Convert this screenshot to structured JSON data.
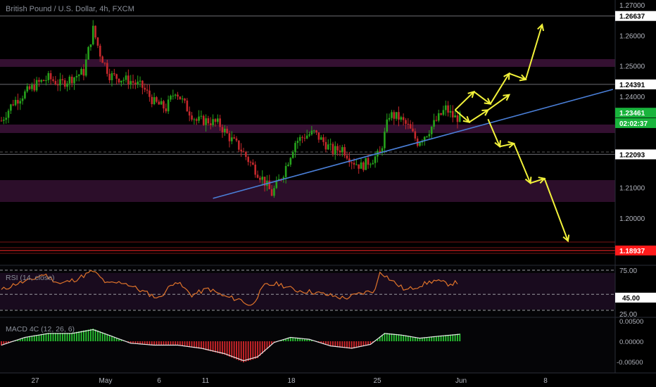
{
  "symbol_title": "British Pound / U.S. Dollar, 4h, FXCM",
  "colors": {
    "background": "#000000",
    "bull": "#26a31c",
    "bear": "#c4282c",
    "trendline": "#4a7fd8",
    "forecast": "#f2f23a",
    "zone": "#5a1a4a",
    "rsi": "#e0742a",
    "macd_line": "#e6e6e6",
    "macd_pos": "#28c832",
    "macd_neg": "#d6262b",
    "last_price_tag": "#19b43c",
    "support_tag": "#ff1a1a",
    "white_tag": "#ffffff"
  },
  "price_axis": {
    "ticks": [
      "1.27000",
      "1.26000",
      "1.25000",
      "1.24000",
      "1.21000",
      "1.20000"
    ],
    "tags": [
      {
        "label": "1.26637",
        "value": 1.26637,
        "style": "white"
      },
      {
        "label": "1.24391",
        "value": 1.24391,
        "style": "white"
      },
      {
        "label": "1.23461",
        "value": 1.23461,
        "style": "green"
      },
      {
        "label": "02:02:37",
        "value": 1.2312,
        "style": "green"
      },
      {
        "label": "1.22093",
        "value": 1.22093,
        "style": "white"
      },
      {
        "label": "1.18937",
        "value": 1.18937,
        "style": "red"
      }
    ]
  },
  "time_axis": {
    "labels": [
      "27",
      "May",
      "6",
      "11",
      "18",
      "25",
      "Jun",
      "8"
    ]
  },
  "rsi_panel": {
    "title": "RSI (14, close)",
    "ticks": [
      "75.00",
      "45.00",
      "25.00"
    ]
  },
  "macd_panel": {
    "title": "MACD 4C (12, 26, 6)",
    "ticks": [
      "0.00500",
      "0.00000",
      "-0.00500"
    ]
  },
  "chart_data": {
    "type": "candlestick",
    "title": "British Pound / U.S. Dollar, 4h, FXCM",
    "x_labels": [
      "27",
      "May",
      "6",
      "11",
      "18",
      "25",
      "Jun",
      "8"
    ],
    "ylim": [
      1.185,
      1.27
    ],
    "horizontal_levels": [
      1.26637,
      1.24391,
      1.22093,
      1.18937
    ],
    "last_price": 1.23461,
    "countdown": "02:02:37",
    "price_path": [
      [
        0,
        1.232
      ],
      [
        10,
        1.238
      ],
      [
        20,
        1.241
      ],
      [
        30,
        1.244
      ],
      [
        40,
        1.246
      ],
      [
        50,
        1.244
      ],
      [
        60,
        1.246
      ],
      [
        70,
        1.248
      ],
      [
        78,
        1.262
      ],
      [
        84,
        1.254
      ],
      [
        92,
        1.247
      ],
      [
        100,
        1.246
      ],
      [
        110,
        1.245
      ],
      [
        120,
        1.243
      ],
      [
        130,
        1.238
      ],
      [
        140,
        1.236
      ],
      [
        148,
        1.242
      ],
      [
        158,
        1.236
      ],
      [
        166,
        1.232
      ],
      [
        175,
        1.232
      ],
      [
        185,
        1.231
      ],
      [
        195,
        1.226
      ],
      [
        203,
        1.223
      ],
      [
        212,
        1.218
      ],
      [
        222,
        1.213
      ],
      [
        230,
        1.208
      ],
      [
        240,
        1.215
      ],
      [
        250,
        1.225
      ],
      [
        258,
        1.227
      ],
      [
        266,
        1.228
      ],
      [
        274,
        1.225
      ],
      [
        282,
        1.222
      ],
      [
        290,
        1.223
      ],
      [
        298,
        1.219
      ],
      [
        306,
        1.217
      ],
      [
        314,
        1.219
      ],
      [
        322,
        1.221
      ],
      [
        330,
        1.234
      ],
      [
        338,
        1.233
      ],
      [
        346,
        1.23
      ],
      [
        354,
        1.225
      ],
      [
        362,
        1.228
      ],
      [
        370,
        1.232
      ],
      [
        378,
        1.236
      ],
      [
        385,
        1.233
      ],
      [
        390,
        1.233
      ]
    ],
    "rsi_path": [
      [
        0,
        50
      ],
      [
        12,
        58
      ],
      [
        24,
        62
      ],
      [
        36,
        70
      ],
      [
        50,
        58
      ],
      [
        64,
        64
      ],
      [
        78,
        74
      ],
      [
        90,
        58
      ],
      [
        104,
        60
      ],
      [
        118,
        50
      ],
      [
        134,
        40
      ],
      [
        148,
        62
      ],
      [
        162,
        44
      ],
      [
        176,
        52
      ],
      [
        190,
        42
      ],
      [
        204,
        38
      ],
      [
        212,
        30
      ],
      [
        224,
        56
      ],
      [
        236,
        58
      ],
      [
        250,
        50
      ],
      [
        264,
        48
      ],
      [
        278,
        44
      ],
      [
        292,
        40
      ],
      [
        306,
        46
      ],
      [
        318,
        50
      ],
      [
        322,
        74
      ],
      [
        332,
        62
      ],
      [
        344,
        50
      ],
      [
        356,
        56
      ],
      [
        368,
        62
      ],
      [
        380,
        58
      ],
      [
        390,
        60
      ]
    ],
    "macd_path": [
      [
        0,
        -0.001
      ],
      [
        20,
        0.001
      ],
      [
        40,
        0.002
      ],
      [
        60,
        0.002
      ],
      [
        78,
        0.003
      ],
      [
        92,
        0.0015
      ],
      [
        110,
        -0.0005
      ],
      [
        130,
        -0.001
      ],
      [
        150,
        -0.001
      ],
      [
        170,
        -0.0018
      ],
      [
        190,
        -0.0032
      ],
      [
        206,
        -0.005
      ],
      [
        218,
        -0.004
      ],
      [
        232,
        -0.0003
      ],
      [
        246,
        0.001
      ],
      [
        262,
        0.0005
      ],
      [
        280,
        -0.0012
      ],
      [
        298,
        -0.0018
      ],
      [
        314,
        -0.0008
      ],
      [
        326,
        0.002
      ],
      [
        340,
        0.0016
      ],
      [
        356,
        0.0008
      ],
      [
        372,
        0.0013
      ],
      [
        390,
        0.0018
      ]
    ],
    "trendline": [
      [
        180,
        1.2065
      ],
      [
        440,
        1.2395
      ]
    ],
    "forecast_paths": [
      [
        [
          386,
          1.2355
        ],
        [
          402,
          1.2415
        ],
        [
          416,
          1.2375
        ],
        [
          432,
          1.2475
        ],
        [
          446,
          1.2455
        ],
        [
          460,
          1.2635
        ]
      ],
      [
        [
          386,
          1.2355
        ],
        [
          398,
          1.2315
        ],
        [
          414,
          1.2355
        ],
        [
          432,
          1.2405
        ]
      ],
      [
        [
          414,
          1.2325
        ],
        [
          424,
          1.2235
        ],
        [
          436,
          1.2245
        ],
        [
          450,
          1.2115
        ],
        [
          462,
          1.213
        ],
        [
          482,
          1.1925
        ]
      ]
    ]
  }
}
